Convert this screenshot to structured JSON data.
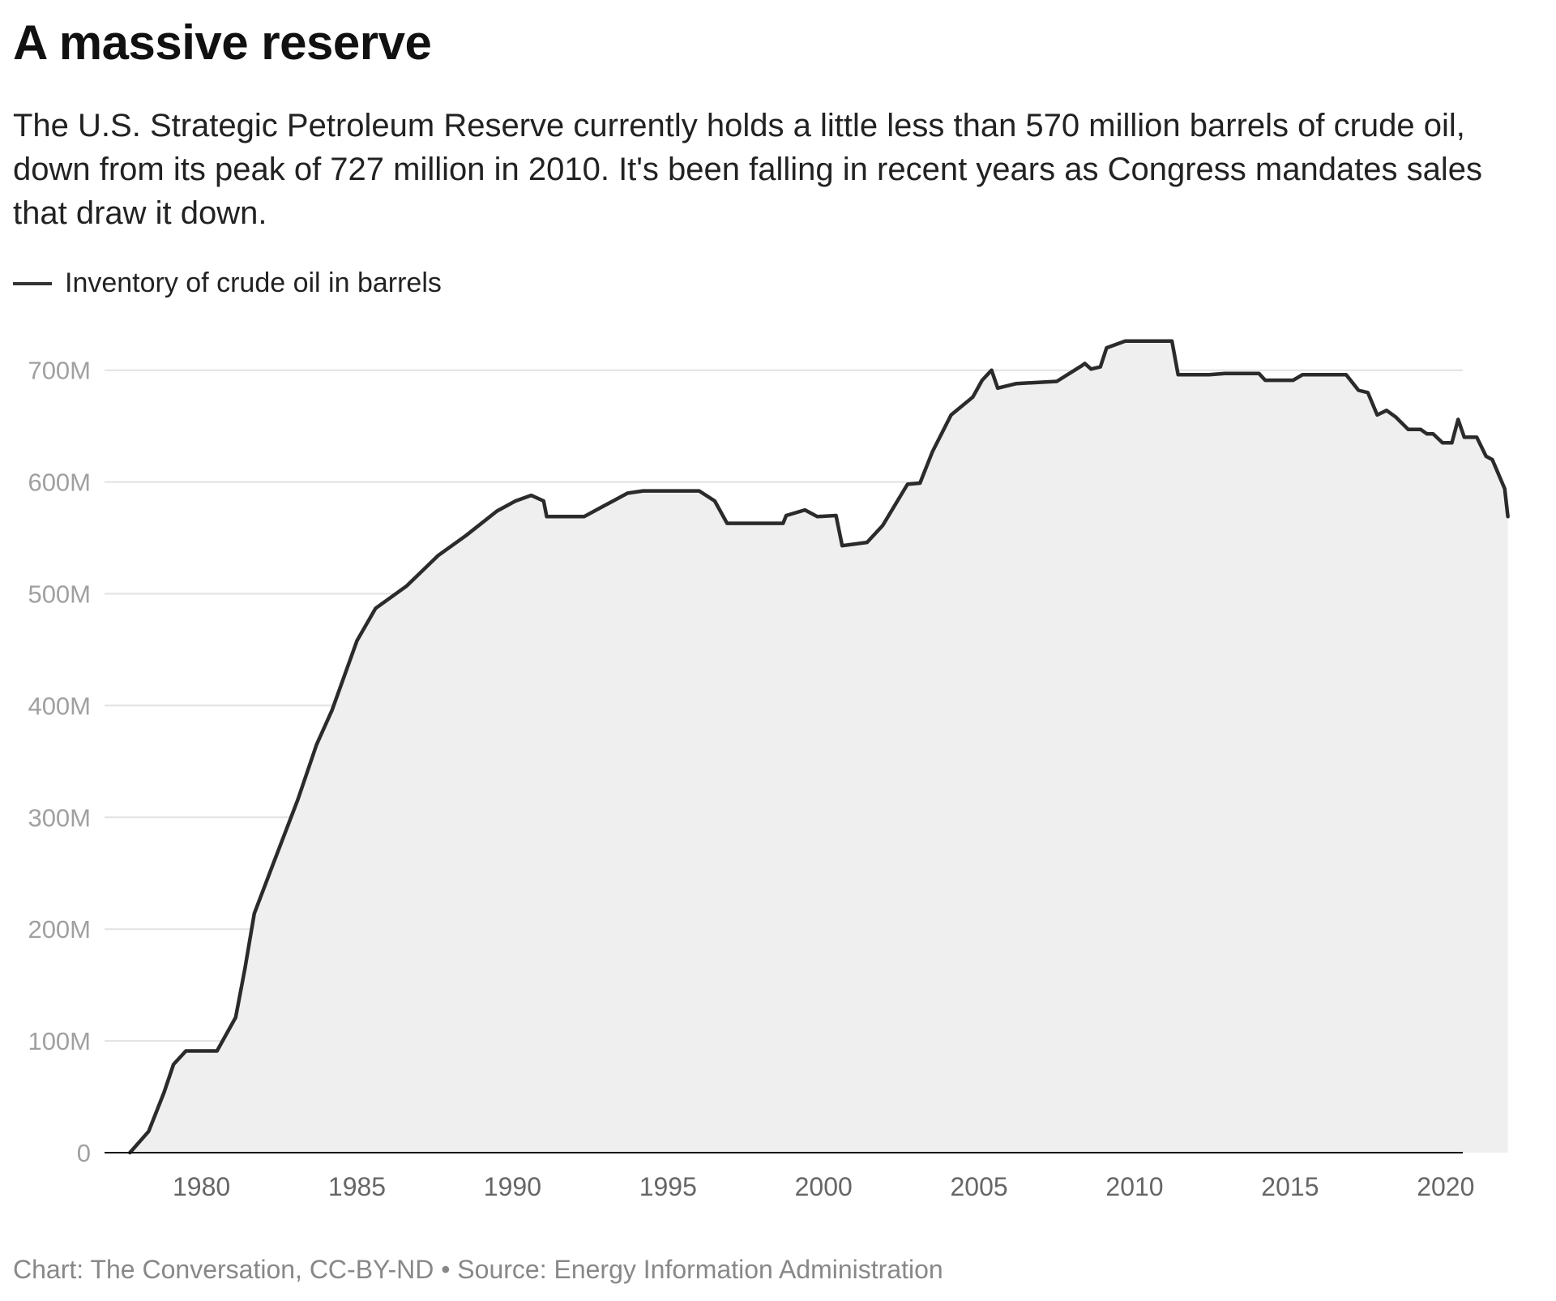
{
  "chart_data": {
    "type": "area",
    "title": "A massive reserve",
    "subtitle": "The U.S. Strategic Petroleum Reserve currently holds a little less than 570 million barrels of crude oil, down from its peak of 727 million in 2010. It's been falling in recent years as Congress mandates sales that draw it down.",
    "legend": {
      "position": "top-left",
      "entries": [
        "Inventory of crude oil in barrels"
      ]
    },
    "xlabel": "",
    "ylabel": "",
    "xlim": [
      1977.2,
      2024.6
    ],
    "ylim": [
      0,
      750
    ],
    "grid": true,
    "y_ticks": [
      0,
      100,
      200,
      300,
      400,
      500,
      600,
      700
    ],
    "y_tick_labels": [
      "0",
      "100M",
      "200M",
      "300M",
      "400M",
      "500M",
      "600M",
      "700M"
    ],
    "x_ticks": [
      1980,
      1985,
      1990,
      1995,
      2000,
      2005,
      2010,
      2015,
      2020
    ],
    "x_tick_labels": [
      "1980",
      "1985",
      "1990",
      "1995",
      "2000",
      "2005",
      "2010",
      "2015",
      "2020"
    ],
    "colors": {
      "line": "#2b2b2b",
      "fill": "#efefef",
      "grid": "#e2e2e2"
    },
    "series": [
      {
        "name": "Inventory of crude oil in barrels",
        "unit": "million barrels",
        "x": [
          1977.7,
          1978.3,
          1978.8,
          1979.1,
          1979.5,
          1980.5,
          1981.1,
          1981.4,
          1981.7,
          1982.3,
          1983.1,
          1983.7,
          1984.2,
          1984.6,
          1985.0,
          1985.6,
          1986.6,
          1987.6,
          1988.5,
          1989.5,
          1990.1,
          1990.6,
          1991.0,
          1991.1,
          1992.3,
          1992.9,
          1993.7,
          1994.2,
          1996.0,
          1996.5,
          1996.9,
          1998.7,
          1998.8,
          1999.4,
          1999.8,
          2000.4,
          2000.6,
          2001.4,
          2001.9,
          2002.7,
          2003.1,
          2003.5,
          2004.1,
          2004.8,
          2005.1,
          2005.4,
          2005.6,
          2006.2,
          2007.5,
          2008.3,
          2008.4,
          2008.6,
          2008.9,
          2009.1,
          2009.7,
          2011.2,
          2011.4,
          2012.4,
          2012.9,
          2014.0,
          2014.2,
          2015.1,
          2015.4,
          2016.8,
          2017.2,
          2017.5,
          2017.8,
          2018.1,
          2018.4,
          2018.8,
          2019.2,
          2019.4,
          2019.6,
          2019.9,
          2020.2,
          2020.4,
          2020.6,
          2021.0,
          2021.3,
          2021.5,
          2021.9,
          2022.0
        ],
        "values": [
          0,
          19,
          54,
          79,
          91,
          91,
          121,
          165,
          214,
          258,
          316,
          365,
          396,
          427,
          458,
          487,
          507,
          534,
          552,
          574,
          583,
          588,
          583,
          569,
          569,
          578,
          590,
          592,
          592,
          583,
          563,
          563,
          570,
          575,
          569,
          570,
          543,
          546,
          561,
          598,
          599,
          627,
          660,
          676,
          691,
          700,
          684,
          688,
          690,
          704,
          706,
          701,
          703,
          720,
          726,
          726,
          696,
          696,
          697,
          697,
          691,
          691,
          696,
          696,
          682,
          680,
          660,
          664,
          658,
          647,
          647,
          643,
          643,
          635,
          635,
          656,
          640,
          640,
          623,
          620,
          594,
          569
        ]
      }
    ],
    "source": "Chart: The Conversation, CC-BY-ND • Source: Energy Information Administration"
  }
}
